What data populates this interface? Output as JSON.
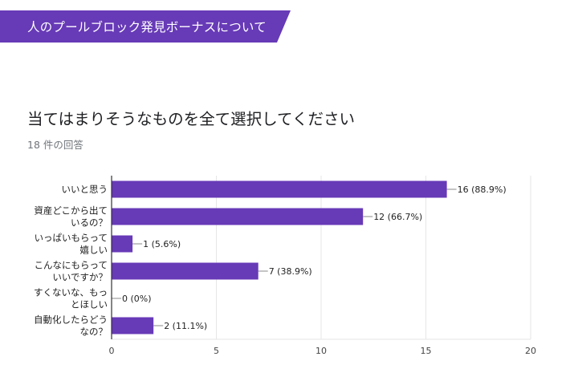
{
  "header": {
    "section_title": "人のプールブロック発見ボーナスについて",
    "banner_color": "#673ab7"
  },
  "question": {
    "title": "当てはまりそうなものを全て選択してください",
    "response_count": "18 件の回答"
  },
  "chart_data": {
    "type": "bar",
    "orientation": "horizontal",
    "bar_color": "#673ab7",
    "categories": [
      [
        "いいと思う"
      ],
      [
        "資産どこから出て",
        "いるの？"
      ],
      [
        "いっぱいもらって",
        "嬉しい"
      ],
      [
        "こんなにもらって",
        "いいですか？"
      ],
      [
        "すくないな、もっ",
        "とほしい"
      ],
      [
        "自動化したらどう",
        "なの？"
      ]
    ],
    "values": [
      16,
      12,
      1,
      7,
      0,
      2
    ],
    "data_labels": [
      "16 (88.9%)",
      "12 (66.7%)",
      "1 (5.6%)",
      "7 (38.9%)",
      "0 (0%)",
      "2 (11.1%)"
    ],
    "xlim": [
      0,
      20
    ],
    "xticks": [
      0,
      5,
      10,
      15,
      20
    ],
    "grid": true
  }
}
